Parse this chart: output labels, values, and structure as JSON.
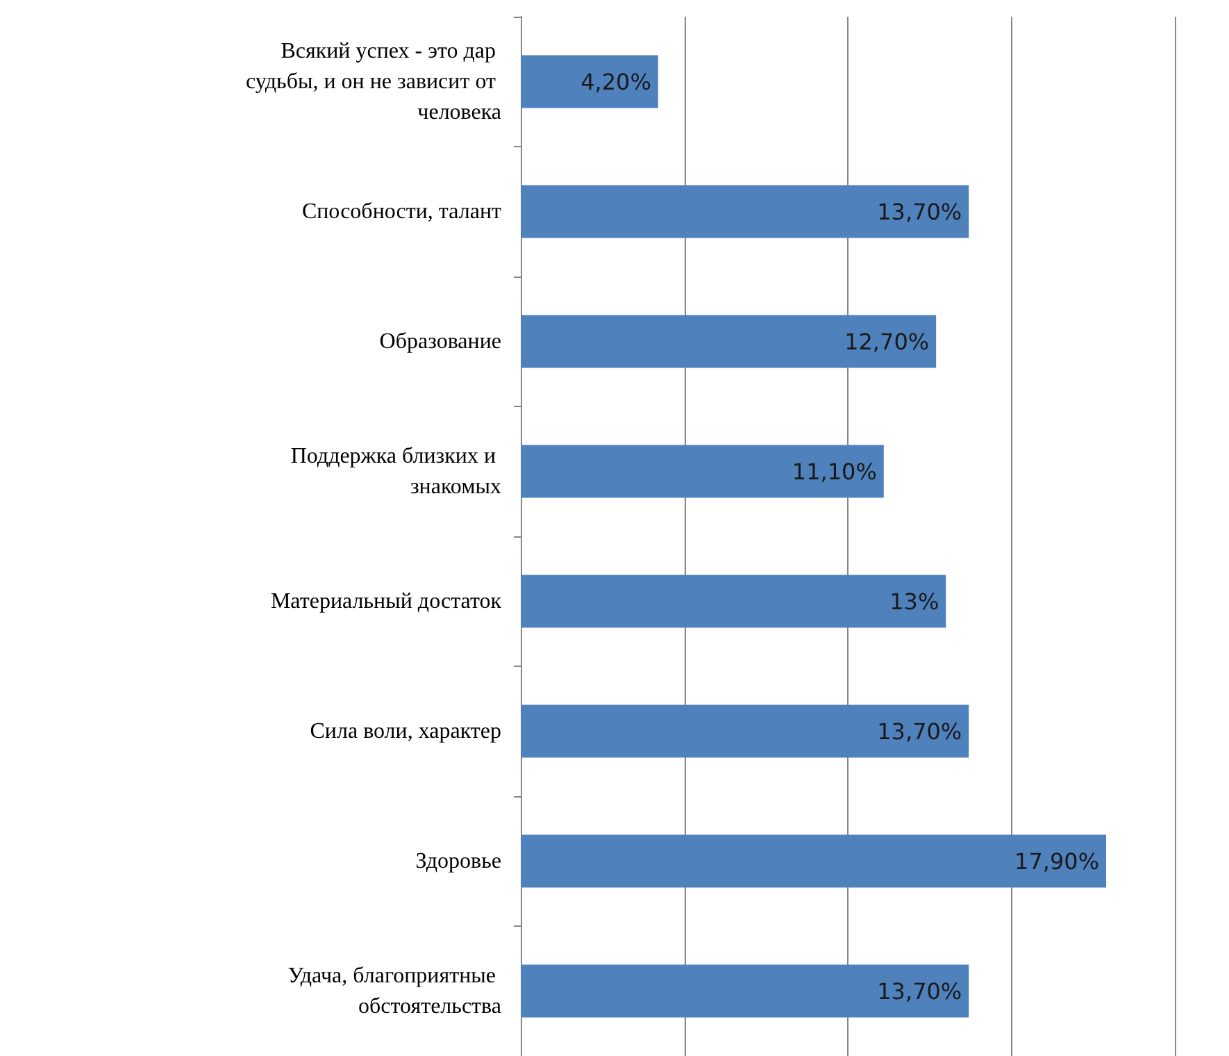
{
  "chart_data": {
    "type": "bar",
    "orientation": "horizontal",
    "categories": [
      "Всякий успех - это дар судьбы, и он не зависит от человека",
      "Способности, талант",
      "Образование",
      "Поддержка близких и знакомых",
      "Материальный достаток",
      "Сила воли, характер",
      "Здоровье",
      "Удача, благоприятные обстоятельства"
    ],
    "values": [
      4.2,
      13.7,
      12.7,
      11.1,
      13,
      13.7,
      17.9,
      13.7
    ],
    "value_labels": [
      "4,20%",
      "13,70%",
      "12,70%",
      "11,10%",
      "13%",
      "13,70%",
      "17,90%",
      "13,70%"
    ],
    "color": "#4f81bd",
    "xlim": [
      0,
      20
    ],
    "xticks": [
      {
        "value": 0,
        "label": null
      },
      {
        "value": 5,
        "label": null
      },
      {
        "value": 10,
        "label": null
      },
      {
        "value": 15,
        "label": null
      },
      {
        "value": 20,
        "label": null
      }
    ],
    "grid": "x",
    "tick_labels": "y"
  }
}
